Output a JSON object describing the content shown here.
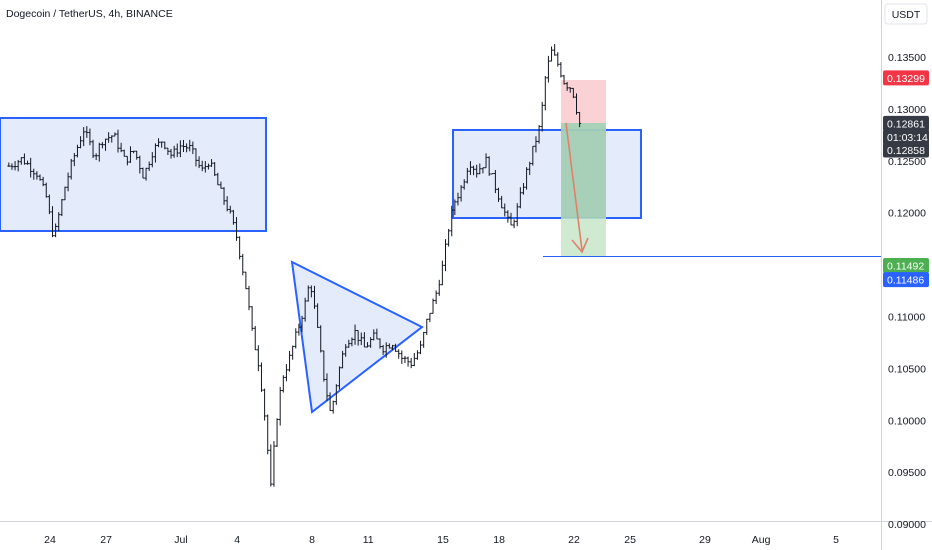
{
  "header": {
    "title": "Dogecoin / TetherUS, 4h, BINANCE"
  },
  "price_scale": {
    "currency": "USDT"
  },
  "colors": {
    "candle": "#131722",
    "zone_stroke": "#2962ff",
    "zone_fill": "#dbe6fb",
    "stop_fill": "#f9c6c9",
    "target_fill": "#c8e6c9",
    "entry_box_fill": "#8fc2a8",
    "arrow": "#e0806a",
    "stop_tag": "#f23645",
    "countdown_tag": "#363a45",
    "target_tag": "#4caf50",
    "level_tag": "#2962ff"
  },
  "price_tags": [
    {
      "name": "stop",
      "label": "0.13299",
      "price": 0.13299,
      "color": "#f23645"
    },
    {
      "name": "last-price",
      "label": "0.12861",
      "price": 0.12861,
      "color": "#363a45"
    },
    {
      "name": "countdown",
      "label": "01:03:14",
      "price": 0.1273,
      "color": "#363a45"
    },
    {
      "name": "entry",
      "label": "0.12858",
      "price": 0.12605,
      "color": "#363a45"
    },
    {
      "name": "target",
      "label": "0.11492",
      "price": 0.11492,
      "color": "#4caf50"
    },
    {
      "name": "level",
      "label": "0.11486",
      "price": 0.11355,
      "color": "#2962ff"
    }
  ],
  "chart_data": {
    "type": "candlestick",
    "y_ticks": [
      "0.13500",
      "0.13000",
      "0.12500",
      "0.12000",
      "0.11500",
      "0.11000",
      "0.10500",
      "0.10000",
      "0.09500",
      "0.09000"
    ],
    "ylim": [
      0.0875,
      0.1405
    ],
    "x_ticks": [
      "24",
      "27",
      "Jul",
      "4",
      "8",
      "11",
      "15",
      "18",
      "22",
      "25",
      "29",
      "Aug",
      "5"
    ],
    "x_tick_days": [
      -7,
      -4,
      0,
      3,
      7,
      10,
      14,
      17,
      21,
      24,
      28,
      31,
      35
    ],
    "candle_day_range": [
      -9.2,
      21.3
    ],
    "waypoints": [
      [
        -9.2,
        0.1245
      ],
      [
        -8.5,
        0.1252
      ],
      [
        -7.7,
        0.1238
      ],
      [
        -7.2,
        0.1215
      ],
      [
        -6.8,
        0.1175
      ],
      [
        -6.2,
        0.1225
      ],
      [
        -5.8,
        0.125
      ],
      [
        -5.2,
        0.128
      ],
      [
        -4.6,
        0.1255
      ],
      [
        -4.2,
        0.127
      ],
      [
        -3.6,
        0.1275
      ],
      [
        -3.0,
        0.125
      ],
      [
        -2.5,
        0.126
      ],
      [
        -2.0,
        0.1235
      ],
      [
        -1.5,
        0.126
      ],
      [
        -1.0,
        0.127
      ],
      [
        -0.5,
        0.1255
      ],
      [
        0.0,
        0.1265
      ],
      [
        0.5,
        0.1262
      ],
      [
        1.1,
        0.124
      ],
      [
        1.5,
        0.125
      ],
      [
        2.0,
        0.1225
      ],
      [
        2.6,
        0.12
      ],
      [
        3.0,
        0.1175
      ],
      [
        3.5,
        0.1125
      ],
      [
        3.8,
        0.1085
      ],
      [
        4.2,
        0.105
      ],
      [
        4.5,
        0.1
      ],
      [
        4.8,
        0.0935
      ],
      [
        5.1,
        0.1
      ],
      [
        5.4,
        0.104
      ],
      [
        5.8,
        0.106
      ],
      [
        6.2,
        0.1085
      ],
      [
        6.6,
        0.111
      ],
      [
        6.9,
        0.1135
      ],
      [
        7.2,
        0.11
      ],
      [
        7.6,
        0.1045
      ],
      [
        8.0,
        0.1005
      ],
      [
        8.4,
        0.1045
      ],
      [
        8.8,
        0.1075
      ],
      [
        9.3,
        0.1085
      ],
      [
        9.8,
        0.107
      ],
      [
        10.3,
        0.108
      ],
      [
        10.8,
        0.107
      ],
      [
        11.3,
        0.1075
      ],
      [
        11.8,
        0.106
      ],
      [
        12.3,
        0.1055
      ],
      [
        12.8,
        0.107
      ],
      [
        13.2,
        0.11
      ],
      [
        13.6,
        0.112
      ],
      [
        14.0,
        0.115
      ],
      [
        14.3,
        0.1185
      ],
      [
        14.6,
        0.121
      ],
      [
        15.0,
        0.1225
      ],
      [
        15.4,
        0.125
      ],
      [
        15.8,
        0.124
      ],
      [
        16.3,
        0.125
      ],
      [
        16.8,
        0.1225
      ],
      [
        17.3,
        0.12
      ],
      [
        17.6,
        0.1185
      ],
      [
        18.0,
        0.1205
      ],
      [
        18.4,
        0.1235
      ],
      [
        18.8,
        0.126
      ],
      [
        19.2,
        0.1285
      ],
      [
        19.5,
        0.1335
      ],
      [
        19.8,
        0.1355
      ],
      [
        20.1,
        0.1345
      ],
      [
        20.5,
        0.1325
      ],
      [
        20.9,
        0.132
      ],
      [
        21.3,
        0.1286
      ]
    ]
  }
}
